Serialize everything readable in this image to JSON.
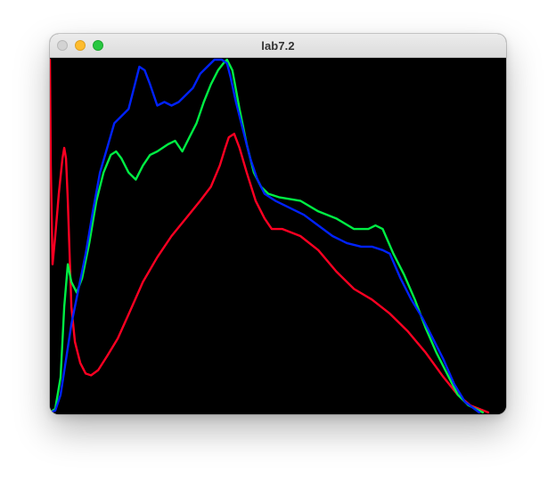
{
  "window": {
    "title": "lab7.2"
  },
  "title_bar": {
    "buttons": [
      {
        "name": "close",
        "color": "#d3d3d3"
      },
      {
        "name": "minimize",
        "color": "#febc2e"
      },
      {
        "name": "zoom",
        "color": "#28c840"
      }
    ]
  },
  "chart_data": {
    "type": "line",
    "xlabel": "",
    "ylabel": "",
    "xlim": [
      0,
      255
    ],
    "ylim": [
      0,
      1
    ],
    "grid": false,
    "background": "#000000",
    "series": [
      {
        "color": "#ff0022",
        "points": [
          [
            0,
            1.0
          ],
          [
            0.5,
            0.7
          ],
          [
            1.5,
            0.42
          ],
          [
            3,
            0.5
          ],
          [
            5,
            0.62
          ],
          [
            7,
            0.72
          ],
          [
            8,
            0.75
          ],
          [
            9,
            0.72
          ],
          [
            10,
            0.6
          ],
          [
            11,
            0.45
          ],
          [
            12,
            0.3
          ],
          [
            14,
            0.2
          ],
          [
            17,
            0.14
          ],
          [
            20,
            0.11
          ],
          [
            23,
            0.105
          ],
          [
            27,
            0.12
          ],
          [
            32,
            0.16
          ],
          [
            38,
            0.21
          ],
          [
            45,
            0.29
          ],
          [
            52,
            0.37
          ],
          [
            60,
            0.44
          ],
          [
            68,
            0.5
          ],
          [
            76,
            0.55
          ],
          [
            84,
            0.6
          ],
          [
            90,
            0.64
          ],
          [
            95,
            0.7
          ],
          [
            98,
            0.75
          ],
          [
            100,
            0.78
          ],
          [
            103,
            0.79
          ],
          [
            106,
            0.75
          ],
          [
            110,
            0.68
          ],
          [
            115,
            0.6
          ],
          [
            120,
            0.55
          ],
          [
            124,
            0.52
          ],
          [
            130,
            0.52
          ],
          [
            140,
            0.5
          ],
          [
            150,
            0.46
          ],
          [
            160,
            0.4
          ],
          [
            170,
            0.35
          ],
          [
            180,
            0.32
          ],
          [
            190,
            0.28
          ],
          [
            200,
            0.23
          ],
          [
            210,
            0.17
          ],
          [
            220,
            0.1
          ],
          [
            228,
            0.05
          ],
          [
            235,
            0.02
          ],
          [
            245,
            0.0
          ]
        ]
      },
      {
        "color": "#00ee44",
        "points": [
          [
            0,
            0.0
          ],
          [
            3,
            0.01
          ],
          [
            6,
            0.1
          ],
          [
            8,
            0.3
          ],
          [
            10,
            0.42
          ],
          [
            12,
            0.37
          ],
          [
            15,
            0.34
          ],
          [
            18,
            0.38
          ],
          [
            22,
            0.48
          ],
          [
            26,
            0.6
          ],
          [
            30,
            0.68
          ],
          [
            34,
            0.73
          ],
          [
            37,
            0.74
          ],
          [
            40,
            0.72
          ],
          [
            44,
            0.68
          ],
          [
            48,
            0.66
          ],
          [
            52,
            0.7
          ],
          [
            56,
            0.73
          ],
          [
            60,
            0.74
          ],
          [
            66,
            0.76
          ],
          [
            70,
            0.77
          ],
          [
            74,
            0.74
          ],
          [
            78,
            0.78
          ],
          [
            82,
            0.82
          ],
          [
            86,
            0.88
          ],
          [
            90,
            0.93
          ],
          [
            94,
            0.97
          ],
          [
            97,
            0.99
          ],
          [
            99,
            1.0
          ],
          [
            102,
            0.97
          ],
          [
            106,
            0.86
          ],
          [
            110,
            0.76
          ],
          [
            114,
            0.68
          ],
          [
            118,
            0.64
          ],
          [
            122,
            0.62
          ],
          [
            128,
            0.61
          ],
          [
            140,
            0.6
          ],
          [
            150,
            0.57
          ],
          [
            160,
            0.55
          ],
          [
            170,
            0.52
          ],
          [
            178,
            0.52
          ],
          [
            182,
            0.53
          ],
          [
            186,
            0.52
          ],
          [
            192,
            0.45
          ],
          [
            198,
            0.39
          ],
          [
            204,
            0.32
          ],
          [
            210,
            0.24
          ],
          [
            216,
            0.17
          ],
          [
            222,
            0.11
          ],
          [
            228,
            0.05
          ],
          [
            234,
            0.02
          ],
          [
            242,
            0.0
          ]
        ]
      },
      {
        "color": "#0022ff",
        "points": [
          [
            0,
            0.0
          ],
          [
            3,
            0.005
          ],
          [
            6,
            0.05
          ],
          [
            9,
            0.15
          ],
          [
            12,
            0.25
          ],
          [
            16,
            0.35
          ],
          [
            20,
            0.45
          ],
          [
            24,
            0.57
          ],
          [
            28,
            0.68
          ],
          [
            32,
            0.75
          ],
          [
            36,
            0.82
          ],
          [
            40,
            0.84
          ],
          [
            44,
            0.86
          ],
          [
            47,
            0.92
          ],
          [
            50,
            0.98
          ],
          [
            53,
            0.97
          ],
          [
            56,
            0.93
          ],
          [
            60,
            0.87
          ],
          [
            64,
            0.88
          ],
          [
            68,
            0.87
          ],
          [
            72,
            0.88
          ],
          [
            76,
            0.9
          ],
          [
            80,
            0.92
          ],
          [
            84,
            0.96
          ],
          [
            88,
            0.98
          ],
          [
            92,
            1.0
          ],
          [
            96,
            1.0
          ],
          [
            99,
            0.99
          ],
          [
            101,
            0.95
          ],
          [
            104,
            0.88
          ],
          [
            108,
            0.8
          ],
          [
            112,
            0.72
          ],
          [
            116,
            0.66
          ],
          [
            120,
            0.62
          ],
          [
            126,
            0.6
          ],
          [
            134,
            0.58
          ],
          [
            142,
            0.56
          ],
          [
            150,
            0.53
          ],
          [
            158,
            0.5
          ],
          [
            166,
            0.48
          ],
          [
            174,
            0.47
          ],
          [
            180,
            0.47
          ],
          [
            186,
            0.46
          ],
          [
            190,
            0.45
          ],
          [
            196,
            0.38
          ],
          [
            202,
            0.32
          ],
          [
            208,
            0.27
          ],
          [
            214,
            0.21
          ],
          [
            220,
            0.15
          ],
          [
            226,
            0.08
          ],
          [
            232,
            0.03
          ],
          [
            240,
            0.0
          ]
        ]
      }
    ]
  }
}
